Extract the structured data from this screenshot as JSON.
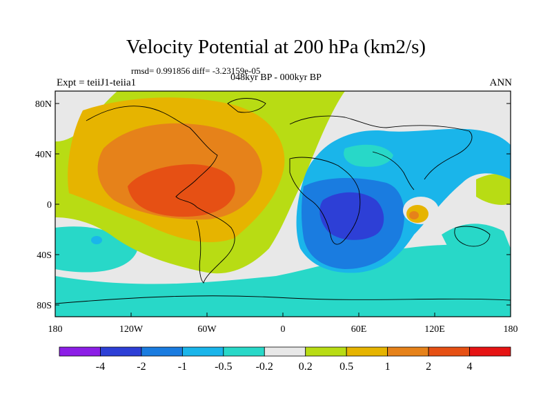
{
  "title": "Velocity Potential at 200 hPa (km2/s)",
  "stats_line": "rmsd= 0.991856 diff= -3.23159e-05",
  "subtitle": "048kyr BP - 000kyr BP",
  "experiment": "Expt = teiiJ1-teiia1",
  "season": "ANN",
  "x_ticks": [
    "180",
    "120W",
    "60W",
    "0",
    "60E",
    "120E",
    "180"
  ],
  "y_ticks": [
    "80N",
    "40N",
    "0",
    "40S",
    "80S"
  ],
  "colorbar": {
    "colors": [
      "#8c1ee6",
      "#2d3fd6",
      "#1a7ce0",
      "#1ab5ea",
      "#28d8c8",
      "#e8e8e8",
      "#b8dc14",
      "#e6b400",
      "#e6821a",
      "#e65014",
      "#e61414"
    ],
    "labels": [
      "-4",
      "-2",
      "-1",
      "-0.5",
      "-0.2",
      "0.2",
      "0.5",
      "1",
      "2",
      "4"
    ]
  },
  "chart_data": {
    "type": "filled contour map",
    "title": "Velocity Potential at 200 hPa (km2/s)",
    "subtitle": "048kyr BP - 000kyr BP",
    "xlim": [
      -180,
      180
    ],
    "ylim": [
      -90,
      90
    ],
    "contour_levels": [
      -4,
      -2,
      -1,
      -0.5,
      -0.2,
      0.2,
      0.5,
      1,
      2,
      4
    ],
    "rmsd": 0.991856,
    "diff": -3.23159e-05
  }
}
